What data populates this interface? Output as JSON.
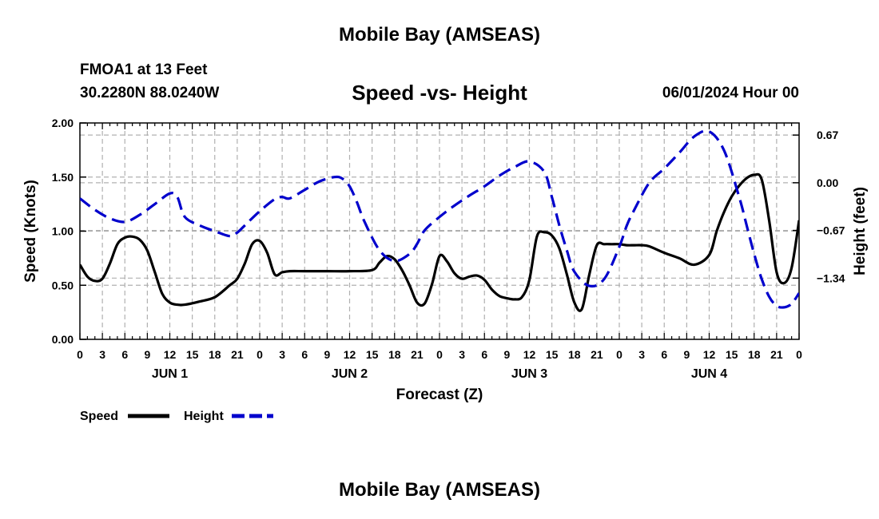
{
  "header": {
    "title": "Mobile Bay (AMSEAS)",
    "station": "FMOA1 at 13 Feet",
    "coords": "30.2280N  88.0240W",
    "subtitle": "Speed -vs- Height",
    "datetime": "06/01/2024 Hour 00",
    "footer_title": "Mobile Bay (AMSEAS)"
  },
  "chart_data": {
    "type": "line",
    "title": "Speed -vs- Height",
    "xlabel": "Forecast (Z)",
    "ylabel": "Speed (Knots)",
    "y2label": "Height (feet)",
    "xlim": [
      0,
      96
    ],
    "ylim": [
      0,
      2.0
    ],
    "y2lim": [
      -2.2,
      0.84
    ],
    "x_tick_labels": [
      "0",
      "3",
      "6",
      "9",
      "12",
      "15",
      "18",
      "21",
      "0",
      "3",
      "6",
      "9",
      "12",
      "15",
      "18",
      "21",
      "0",
      "3",
      "6",
      "9",
      "12",
      "15",
      "18",
      "21",
      "0",
      "3",
      "6",
      "9",
      "12",
      "15",
      "18",
      "21",
      "0"
    ],
    "day_labels": [
      "JUN 1",
      "JUN 2",
      "JUN 3",
      "JUN 4"
    ],
    "y_ticks": [
      "0.00",
      "0.50",
      "1.00",
      "1.50",
      "2.00"
    ],
    "y2_ticks": [
      "0.67",
      "0.00",
      "−0.67",
      "−1.34"
    ],
    "grid": true,
    "legend": [
      "Speed",
      "Height"
    ],
    "series": [
      {
        "name": "Speed",
        "color": "#000000",
        "axis": "left",
        "x": [
          0,
          1,
          2,
          3,
          4,
          5,
          6,
          7,
          8,
          9,
          10,
          11,
          12,
          13,
          14,
          16,
          18,
          20,
          21,
          22,
          23,
          24,
          25,
          26,
          27,
          28,
          30,
          33,
          36,
          39,
          40,
          41,
          42,
          43,
          44,
          45,
          46,
          47,
          48,
          49,
          50,
          51,
          52,
          53,
          54,
          55,
          56,
          57,
          58,
          59,
          60,
          61,
          62,
          63,
          64,
          65,
          66,
          67,
          68,
          69,
          70,
          71,
          72,
          73,
          74,
          75,
          76,
          78,
          80,
          82,
          84,
          85,
          86,
          87,
          88,
          89,
          90,
          91,
          92,
          93,
          94,
          95,
          96
        ],
        "values": [
          0.69,
          0.58,
          0.54,
          0.56,
          0.7,
          0.88,
          0.94,
          0.95,
          0.92,
          0.82,
          0.62,
          0.42,
          0.34,
          0.32,
          0.32,
          0.35,
          0.39,
          0.5,
          0.56,
          0.7,
          0.88,
          0.91,
          0.8,
          0.6,
          0.62,
          0.63,
          0.63,
          0.63,
          0.63,
          0.64,
          0.71,
          0.77,
          0.74,
          0.64,
          0.5,
          0.34,
          0.33,
          0.51,
          0.77,
          0.72,
          0.61,
          0.56,
          0.58,
          0.59,
          0.55,
          0.46,
          0.4,
          0.38,
          0.37,
          0.39,
          0.55,
          0.95,
          0.99,
          0.96,
          0.84,
          0.6,
          0.34,
          0.28,
          0.6,
          0.87,
          0.88,
          0.88,
          0.88,
          0.87,
          0.87,
          0.87,
          0.86,
          0.8,
          0.75,
          0.69,
          0.78,
          1.0,
          1.18,
          1.32,
          1.42,
          1.49,
          1.52,
          1.48,
          1.1,
          0.62,
          0.52,
          0.66,
          1.1
        ]
      },
      {
        "name": "Height",
        "color": "#0000cc",
        "axis": "right",
        "x": [
          0,
          2,
          4,
          6,
          8,
          10,
          12,
          13,
          14,
          16,
          18,
          20,
          21,
          22,
          24,
          26,
          27,
          28,
          30,
          32,
          34,
          35,
          36,
          37,
          38,
          40,
          42,
          44,
          45,
          46,
          48,
          50,
          52,
          54,
          56,
          58,
          60,
          62,
          63,
          64,
          65,
          66,
          68,
          70,
          72,
          73,
          74,
          76,
          78,
          80,
          82,
          84,
          86,
          88,
          89,
          90,
          91,
          92,
          93,
          94,
          95,
          96
        ],
        "values": [
          -0.22,
          -0.38,
          -0.5,
          -0.55,
          -0.45,
          -0.3,
          -0.15,
          -0.2,
          -0.48,
          -0.6,
          -0.68,
          -0.75,
          -0.7,
          -0.6,
          -0.4,
          -0.23,
          -0.2,
          -0.22,
          -0.1,
          0.02,
          0.08,
          0.06,
          -0.05,
          -0.28,
          -0.55,
          -0.95,
          -1.1,
          -1.0,
          -0.86,
          -0.67,
          -0.48,
          -0.32,
          -0.18,
          -0.05,
          0.1,
          0.22,
          0.3,
          0.15,
          -0.2,
          -0.6,
          -0.95,
          -1.25,
          -1.45,
          -1.35,
          -0.9,
          -0.6,
          -0.38,
          0.0,
          0.2,
          0.42,
          0.65,
          0.72,
          0.45,
          -0.2,
          -0.6,
          -1.0,
          -1.35,
          -1.6,
          -1.73,
          -1.75,
          -1.7,
          -1.55
        ]
      }
    ]
  }
}
